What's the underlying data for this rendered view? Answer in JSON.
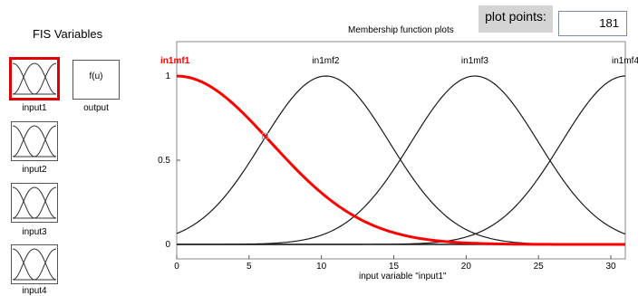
{
  "sidebar": {
    "title": "FIS Variables",
    "variables": [
      {
        "label": "input1",
        "selected": true
      },
      {
        "label": "output",
        "text": "f(u)"
      },
      {
        "label": "input2"
      },
      {
        "label": "input3"
      },
      {
        "label": "input4"
      }
    ]
  },
  "plot_title": "Membership function plots",
  "plot_points": {
    "label": "plot points:",
    "value": "181"
  },
  "colors": {
    "selected": "#ff0000",
    "normal": "#1a1a1a",
    "sel_border": "#e00000"
  },
  "chart_data": {
    "type": "line",
    "xlabel": "input variable \"input1\"",
    "xlim": [
      0,
      31
    ],
    "ylim": [
      0,
      1
    ],
    "x_ticks": [
      0,
      5,
      10,
      15,
      20,
      25,
      30
    ],
    "y_ticks": [
      0,
      0.5,
      1
    ],
    "series": [
      {
        "name": "in1mf1",
        "shape": "gaussian",
        "center": 0,
        "sigma": 6.5,
        "selected": true
      },
      {
        "name": "in1mf2",
        "shape": "gaussian",
        "center": 10.3,
        "sigma": 4.4
      },
      {
        "name": "in1mf3",
        "shape": "gaussian",
        "center": 20.6,
        "sigma": 4.4
      },
      {
        "name": "in1mf4",
        "shape": "gaussian",
        "center": 31,
        "sigma": 4.4
      }
    ]
  }
}
